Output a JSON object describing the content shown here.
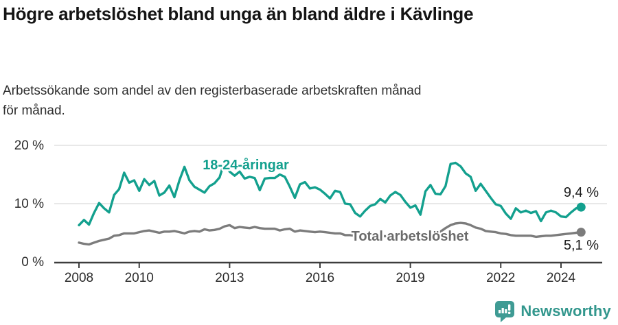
{
  "chart_data": {
    "type": "line",
    "title": "Högre arbetslöshet bland unga än bland äldre i Kävlinge",
    "subtitle": "Arbetssökande som andel av den registerbaserade arbetskraften månad för månad.",
    "xlabel": "",
    "ylabel": "",
    "grid": "horizontal",
    "legend_position": "inline",
    "ylim": [
      0,
      20
    ],
    "xlim": [
      2007.2,
      2025.4
    ],
    "y_ticks": [
      0,
      10,
      20
    ],
    "y_tick_labels": [
      "0 %",
      "10 %",
      "20 %"
    ],
    "x_tick_values": [
      2008,
      2010,
      2013,
      2016,
      2019,
      2022,
      2024
    ],
    "x_tick_labels": [
      "2008",
      "2010",
      "2013",
      "2016",
      "2019",
      "2022",
      "2024"
    ],
    "x_start": 2008,
    "x_step_years": 0.16667,
    "series": [
      {
        "name": "18-24-åringar",
        "color": "#13a08e",
        "end_label": "9,4 %",
        "end_value": 9.4,
        "values": [
          6.3,
          7.2,
          6.4,
          8.4,
          10.1,
          9.2,
          8.5,
          11.5,
          12.5,
          15.3,
          13.6,
          14.0,
          12.2,
          14.2,
          13.2,
          13.9,
          11.4,
          11.9,
          13.1,
          11.1,
          14.0,
          16.3,
          14.0,
          12.9,
          12.4,
          11.9,
          13.0,
          13.5,
          14.5,
          17.3,
          15.5,
          14.8,
          15.5,
          14.3,
          14.6,
          14.4,
          12.3,
          14.3,
          14.4,
          14.4,
          15.0,
          14.6,
          12.9,
          11.0,
          13.3,
          13.7,
          12.6,
          12.8,
          12.4,
          11.7,
          10.9,
          12.2,
          12.0,
          10.0,
          9.9,
          8.4,
          7.8,
          8.8,
          9.6,
          9.9,
          10.8,
          10.2,
          11.4,
          12.0,
          11.5,
          10.3,
          9.3,
          9.7,
          8.1,
          12.1,
          13.2,
          11.7,
          11.6,
          13.0,
          16.8,
          17.0,
          16.4,
          15.2,
          14.6,
          12.2,
          13.4,
          12.2,
          11.0,
          9.9,
          9.6,
          8.3,
          7.4,
          9.2,
          8.5,
          8.8,
          8.4,
          8.7,
          7.0,
          8.5,
          8.8,
          8.5,
          7.8,
          7.7,
          8.5,
          9.2,
          9.4
        ]
      },
      {
        "name": "Total arbetslöshet",
        "color": "#7c7c7c",
        "end_label": "5,1 %",
        "end_value": 5.1,
        "values": [
          3.3,
          3.1,
          3.0,
          3.3,
          3.6,
          3.8,
          4.0,
          4.5,
          4.6,
          4.9,
          4.9,
          4.9,
          5.1,
          5.3,
          5.4,
          5.2,
          5.0,
          5.2,
          5.2,
          5.3,
          5.1,
          4.9,
          5.2,
          5.3,
          5.2,
          5.6,
          5.4,
          5.5,
          5.7,
          6.1,
          6.3,
          5.8,
          6.0,
          5.9,
          5.8,
          6.0,
          5.8,
          5.7,
          5.7,
          5.7,
          5.4,
          5.6,
          5.7,
          5.2,
          5.4,
          5.3,
          5.2,
          5.1,
          5.2,
          5.1,
          5.0,
          4.9,
          4.9,
          4.6,
          4.6,
          4.5,
          4.6,
          4.5,
          4.5,
          4.5,
          4.5,
          4.4,
          4.5,
          4.4,
          4.4,
          4.4,
          4.4,
          4.5,
          4.4,
          4.4,
          4.6,
          4.9,
          5.2,
          5.8,
          6.3,
          6.6,
          6.7,
          6.6,
          6.3,
          5.9,
          5.7,
          5.3,
          5.2,
          5.1,
          4.9,
          4.8,
          4.6,
          4.5,
          4.5,
          4.5,
          4.5,
          4.3,
          4.4,
          4.5,
          4.5,
          4.6,
          4.7,
          4.8,
          4.9,
          5.0,
          5.1
        ]
      }
    ],
    "colors": {
      "grid": "#d9d9d9",
      "axis": "#3d3d3d",
      "tick_text": "#2b2b2b",
      "gray_label": "#6b6b6b",
      "end_label_text": "#1c1c1c"
    }
  },
  "logo": {
    "brand": "Newsworthy",
    "color": "#33978d",
    "icon": "speech-bubble-barchart-icon"
  }
}
